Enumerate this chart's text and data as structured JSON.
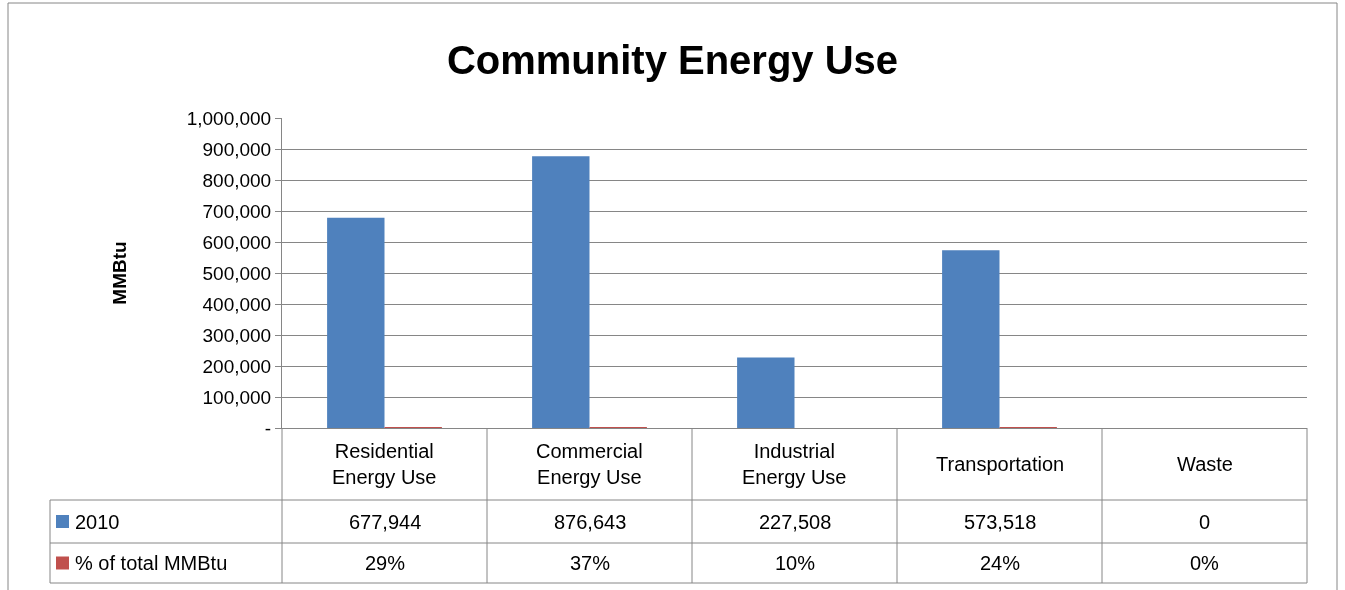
{
  "chart_data": {
    "type": "bar",
    "title": "Community Energy Use",
    "ylabel": "MMBtu",
    "categories": [
      "Residential Energy Use",
      "Commercial Energy Use",
      "Industrial Energy Use",
      "Transportation",
      "Waste"
    ],
    "series": [
      {
        "name": "2010",
        "color": "#4f81bd",
        "values": [
          677944,
          876643,
          227508,
          573518,
          0
        ],
        "value_labels": [
          "677,944",
          "876,643",
          "227,508",
          "573,518",
          "0"
        ]
      },
      {
        "name": "% of total MMBtu",
        "color": "#c0504d",
        "values": [
          29,
          37,
          10,
          24,
          0
        ],
        "value_labels": [
          "29%",
          "37%",
          "10%",
          "24%",
          "0%"
        ]
      }
    ],
    "ylim": [
      0,
      1000000
    ],
    "yticks": [
      {
        "value": 0,
        "label": "-"
      },
      {
        "value": 100000,
        "label": "100,000"
      },
      {
        "value": 200000,
        "label": "200,000"
      },
      {
        "value": 300000,
        "label": "300,000"
      },
      {
        "value": 400000,
        "label": "400,000"
      },
      {
        "value": 500000,
        "label": "500,000"
      },
      {
        "value": 600000,
        "label": "600,000"
      },
      {
        "value": 700000,
        "label": "700,000"
      },
      {
        "value": 800000,
        "label": "800,000"
      },
      {
        "value": 900000,
        "label": "900,000"
      },
      {
        "value": 1000000,
        "label": "1,000,000"
      }
    ],
    "grid": "y",
    "legend": "bottom left"
  }
}
